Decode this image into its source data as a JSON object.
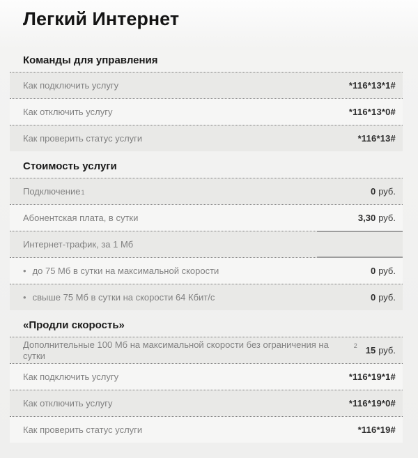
{
  "page": {
    "title": "Легкий Интернет"
  },
  "colors": {
    "row_dark_bg": "#e9e9e7",
    "row_light_bg": "#f6f6f5",
    "dotted_border": "#7c7c7c",
    "solid_border": "#9d9d9d",
    "label_text": "#818181",
    "value_text": "#2e2e2e"
  },
  "bullet_glyph": "•",
  "sections": [
    {
      "heading": "Команды для управления",
      "rows": [
        {
          "label": "Как подключить услугу",
          "code": "*116*13*1#"
        },
        {
          "label": "Как отключить услугу",
          "code": "*116*13*0#"
        },
        {
          "label": "Как проверить статус услуги",
          "code": "*116*13#"
        }
      ]
    },
    {
      "heading": "Стоимость услуги",
      "rows": [
        {
          "label": "Подключение",
          "label_sup": "1",
          "amount": "0",
          "unit": "руб."
        },
        {
          "label": "Абонентская плата, в сутки",
          "amount": "3,30",
          "unit": "руб."
        },
        {
          "label": "Интернет-трафик, за 1 Мб",
          "value_cell_emphasis": true
        },
        {
          "label": "до 75 Мб в сутки на максимальной скорости",
          "bullet": true,
          "amount": "0",
          "unit": "руб."
        },
        {
          "label": "свыше 75 Мб в сутки на скорости 64 Кбит/с",
          "bullet": true,
          "amount": "0",
          "unit": "руб."
        }
      ]
    },
    {
      "heading": "«Продли скорость»",
      "rows": [
        {
          "label": "Дополнительные 100 Мб на максимальной скорости без ограничения на сутки",
          "label_sup": "2",
          "amount": "15",
          "unit": "руб."
        },
        {
          "label": "Как подключить услугу",
          "code": "*116*19*1#"
        },
        {
          "label": "Как отключить услугу",
          "code": "*116*19*0#"
        },
        {
          "label": "Как проверить статус услуги",
          "code": "*116*19#"
        }
      ]
    }
  ]
}
